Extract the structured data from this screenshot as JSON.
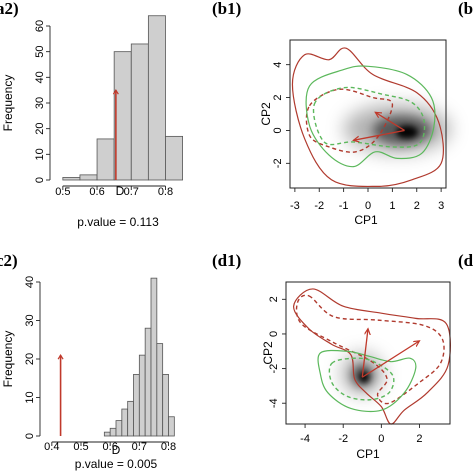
{
  "panel_labels": [
    "a2)",
    "(b1)",
    "(b",
    "c2)",
    "(d1)",
    "(d"
  ],
  "colors": {
    "bar_fill": "#cfcfcf",
    "bar_stroke": "#555555",
    "observed_line": "#c0392b",
    "contour_red": "#b03a2e",
    "contour_green": "#5cb85c",
    "arrow": "#c0392b"
  },
  "chart_data": [
    {
      "id": "a2",
      "type": "bar",
      "xlabel": "D",
      "ylabel": "Frequency",
      "xlim": [
        0.48,
        0.86
      ],
      "ylim": [
        0,
        60
      ],
      "xticks": [
        "0.5",
        "0.6",
        "0.7",
        "0.8"
      ],
      "xtick_values": [
        0.5,
        0.6,
        0.7,
        0.8
      ],
      "yticks": [
        "0",
        "10",
        "20",
        "30",
        "40",
        "50",
        "60"
      ],
      "ytick_values": [
        0,
        10,
        20,
        30,
        40,
        50,
        60
      ],
      "bins": [
        {
          "x0": 0.5,
          "x1": 0.55,
          "count": 1
        },
        {
          "x0": 0.55,
          "x1": 0.6,
          "count": 2
        },
        {
          "x0": 0.6,
          "x1": 0.65,
          "count": 16
        },
        {
          "x0": 0.65,
          "x1": 0.7,
          "count": 50
        },
        {
          "x0": 0.7,
          "x1": 0.75,
          "count": 53
        },
        {
          "x0": 0.75,
          "x1": 0.8,
          "count": 64
        },
        {
          "x0": 0.8,
          "x1": 0.85,
          "count": 17
        }
      ],
      "observed": {
        "x": 0.655,
        "height": 35
      },
      "pvalue_text": "p.value = 0.113"
    },
    {
      "id": "c2",
      "type": "bar",
      "xlabel": "D",
      "ylabel": "Frequency",
      "xlim": [
        0.38,
        0.86
      ],
      "ylim": [
        0,
        40
      ],
      "xticks": [
        "0.4",
        "0.5",
        "0.6",
        "0.7",
        "0.8"
      ],
      "xtick_values": [
        0.4,
        0.5,
        0.6,
        0.7,
        0.8
      ],
      "yticks": [
        "0",
        "10",
        "20",
        "30",
        "40"
      ],
      "ytick_values": [
        0,
        10,
        20,
        30,
        40
      ],
      "bins": [
        {
          "x0": 0.58,
          "x1": 0.6,
          "count": 1
        },
        {
          "x0": 0.6,
          "x1": 0.62,
          "count": 2
        },
        {
          "x0": 0.62,
          "x1": 0.64,
          "count": 4
        },
        {
          "x0": 0.64,
          "x1": 0.66,
          "count": 7
        },
        {
          "x0": 0.66,
          "x1": 0.68,
          "count": 9
        },
        {
          "x0": 0.68,
          "x1": 0.7,
          "count": 16
        },
        {
          "x0": 0.7,
          "x1": 0.72,
          "count": 21
        },
        {
          "x0": 0.72,
          "x1": 0.74,
          "count": 28
        },
        {
          "x0": 0.74,
          "x1": 0.76,
          "count": 41
        },
        {
          "x0": 0.76,
          "x1": 0.78,
          "count": 24
        },
        {
          "x0": 0.78,
          "x1": 0.8,
          "count": 16
        },
        {
          "x0": 0.8,
          "x1": 0.82,
          "count": 5
        }
      ],
      "observed": {
        "x": 0.43,
        "height": 21
      },
      "pvalue_text": "p.value = 0.005"
    },
    {
      "id": "b1",
      "type": "scatter",
      "xlabel": "CP1",
      "ylabel": "CP2",
      "xlim": [
        -3.2,
        3.2
      ],
      "ylim": [
        -3.5,
        5.5
      ],
      "xticks": [
        "-3",
        "-2",
        "-1",
        "0",
        "1",
        "2",
        "3"
      ],
      "xtick_values": [
        -3,
        -2,
        -1,
        0,
        1,
        2,
        3
      ],
      "yticks": [
        "-2",
        "0",
        "2",
        "4"
      ],
      "ytick_values": [
        -2,
        0,
        2,
        4
      ],
      "density_blobs": [
        {
          "cx": 1.2,
          "cy": 0.1,
          "rx": 2.2,
          "ry": 1.5,
          "opacity": 0.3
        },
        {
          "cx": 1.4,
          "cy": 0.0,
          "rx": 1.2,
          "ry": 0.9,
          "opacity": 0.5
        },
        {
          "cx": 1.6,
          "cy": -0.1,
          "rx": 0.45,
          "ry": 0.4,
          "opacity": 0.95
        }
      ],
      "contours": [
        {
          "color": "red",
          "dash": false,
          "points": [
            [
              -2.6,
              4.6
            ],
            [
              -1.6,
              4.3
            ],
            [
              -0.9,
              5.0
            ],
            [
              0.2,
              3.4
            ],
            [
              2.0,
              2.3
            ],
            [
              2.9,
              0.5
            ],
            [
              3.0,
              -2.0
            ],
            [
              1.8,
              -3.0
            ],
            [
              0.4,
              -3.4
            ],
            [
              -1.5,
              -3.0
            ],
            [
              -2.6,
              -0.5
            ],
            [
              -3.1,
              2.8
            ],
            [
              -2.6,
              4.6
            ]
          ]
        },
        {
          "color": "red",
          "dash": true,
          "points": [
            [
              -2.4,
              1.5
            ],
            [
              -1.2,
              2.5
            ],
            [
              0.2,
              2.0
            ],
            [
              1.0,
              1.6
            ],
            [
              0.4,
              -0.4
            ],
            [
              -0.5,
              -1.3
            ],
            [
              -1.6,
              -1.0
            ],
            [
              -2.4,
              -0.3
            ],
            [
              -2.4,
              1.5
            ]
          ]
        },
        {
          "color": "green",
          "dash": false,
          "points": [
            [
              -2.4,
              2.7
            ],
            [
              -1.0,
              3.7
            ],
            [
              0.0,
              3.9
            ],
            [
              1.6,
              3.4
            ],
            [
              2.6,
              2.0
            ],
            [
              2.7,
              0.2
            ],
            [
              2.2,
              -1.4
            ],
            [
              1.2,
              -1.7
            ],
            [
              0.3,
              -1.3
            ],
            [
              -0.6,
              -2.2
            ],
            [
              -1.6,
              -1.5
            ],
            [
              -2.4,
              0.3
            ],
            [
              -2.4,
              2.7
            ]
          ]
        },
        {
          "color": "green",
          "dash": true,
          "points": [
            [
              -2.2,
              1.6
            ],
            [
              -1.0,
              2.6
            ],
            [
              0.6,
              2.2
            ],
            [
              1.8,
              1.7
            ],
            [
              2.3,
              0.6
            ],
            [
              2.1,
              -0.8
            ],
            [
              1.0,
              -1.0
            ],
            [
              -0.6,
              -0.7
            ],
            [
              -1.8,
              -0.7
            ],
            [
              -2.2,
              1.6
            ]
          ]
        }
      ],
      "arrows": [
        {
          "x0": 1.5,
          "y0": 0.0,
          "x1": -0.6,
          "y1": -0.6
        },
        {
          "x0": 1.5,
          "y0": 0.0,
          "x1": 0.3,
          "y1": 1.1
        }
      ]
    },
    {
      "id": "d1",
      "type": "scatter",
      "xlabel": "CP1",
      "ylabel": "CP2",
      "xlim": [
        -5.0,
        3.6
      ],
      "ylim": [
        -5.2,
        3.0
      ],
      "xticks": [
        "-4",
        "-2",
        "0",
        "2"
      ],
      "xtick_values": [
        -4,
        -2,
        0,
        2
      ],
      "yticks": [
        "-4",
        "-2",
        "0",
        "2"
      ],
      "ytick_values": [
        -4,
        -2,
        0,
        2
      ],
      "density_blobs": [
        {
          "cx": -1.0,
          "cy": -2.3,
          "rx": 1.1,
          "ry": 1.2,
          "opacity": 0.3
        },
        {
          "cx": -1.0,
          "cy": -2.4,
          "rx": 0.55,
          "ry": 0.6,
          "opacity": 0.6
        },
        {
          "cx": -0.9,
          "cy": -2.5,
          "rx": 0.25,
          "ry": 0.3,
          "opacity": 0.95
        }
      ],
      "contours": [
        {
          "color": "red",
          "dash": false,
          "points": [
            [
              -3.6,
              2.6
            ],
            [
              -2.0,
              1.6
            ],
            [
              0.0,
              1.2
            ],
            [
              1.8,
              0.9
            ],
            [
              3.4,
              0.6
            ],
            [
              3.5,
              -1.8
            ],
            [
              2.4,
              -3.4
            ],
            [
              1.2,
              -4.4
            ],
            [
              0.5,
              -5.2
            ],
            [
              0.0,
              -4.2
            ],
            [
              -0.8,
              -3.4
            ],
            [
              -1.4,
              -2.6
            ],
            [
              -1.6,
              -1.2
            ],
            [
              -2.6,
              -0.6
            ],
            [
              -3.8,
              0.3
            ],
            [
              -4.6,
              1.6
            ],
            [
              -3.6,
              2.6
            ]
          ]
        },
        {
          "color": "red",
          "dash": true,
          "points": [
            [
              -3.8,
              2.2
            ],
            [
              -2.5,
              1.0
            ],
            [
              -0.2,
              0.8
            ],
            [
              2.2,
              0.5
            ],
            [
              3.2,
              -0.3
            ],
            [
              3.1,
              -1.7
            ],
            [
              2.0,
              -2.8
            ],
            [
              0.4,
              -4.0
            ],
            [
              -0.2,
              -3.5
            ],
            [
              0.3,
              -2.6
            ],
            [
              -0.5,
              -1.6
            ],
            [
              -2.5,
              -0.5
            ],
            [
              -4.2,
              0.6
            ],
            [
              -4.4,
              1.8
            ],
            [
              -3.8,
              2.2
            ]
          ]
        },
        {
          "color": "green",
          "dash": false,
          "points": [
            [
              -3.2,
              -1.1
            ],
            [
              -1.8,
              -1.0
            ],
            [
              -0.6,
              -1.3
            ],
            [
              0.5,
              -1.6
            ],
            [
              1.5,
              -1.4
            ],
            [
              1.8,
              -2.0
            ],
            [
              1.2,
              -3.4
            ],
            [
              0.0,
              -4.4
            ],
            [
              -1.6,
              -4.3
            ],
            [
              -2.8,
              -3.4
            ],
            [
              -3.2,
              -2.3
            ],
            [
              -3.2,
              -1.1
            ]
          ]
        },
        {
          "color": "green",
          "dash": true,
          "points": [
            [
              -2.6,
              -1.7
            ],
            [
              -1.4,
              -1.4
            ],
            [
              -0.4,
              -1.6
            ],
            [
              0.6,
              -2.4
            ],
            [
              0.4,
              -3.4
            ],
            [
              -0.6,
              -3.8
            ],
            [
              -1.8,
              -3.6
            ],
            [
              -2.6,
              -2.8
            ],
            [
              -2.6,
              -1.7
            ]
          ]
        }
      ],
      "arrows": [
        {
          "x0": -1.0,
          "y0": -2.5,
          "x1": -0.7,
          "y1": 0.3
        },
        {
          "x0": -1.0,
          "y0": -2.5,
          "x1": 2.0,
          "y1": -0.4
        }
      ]
    }
  ]
}
